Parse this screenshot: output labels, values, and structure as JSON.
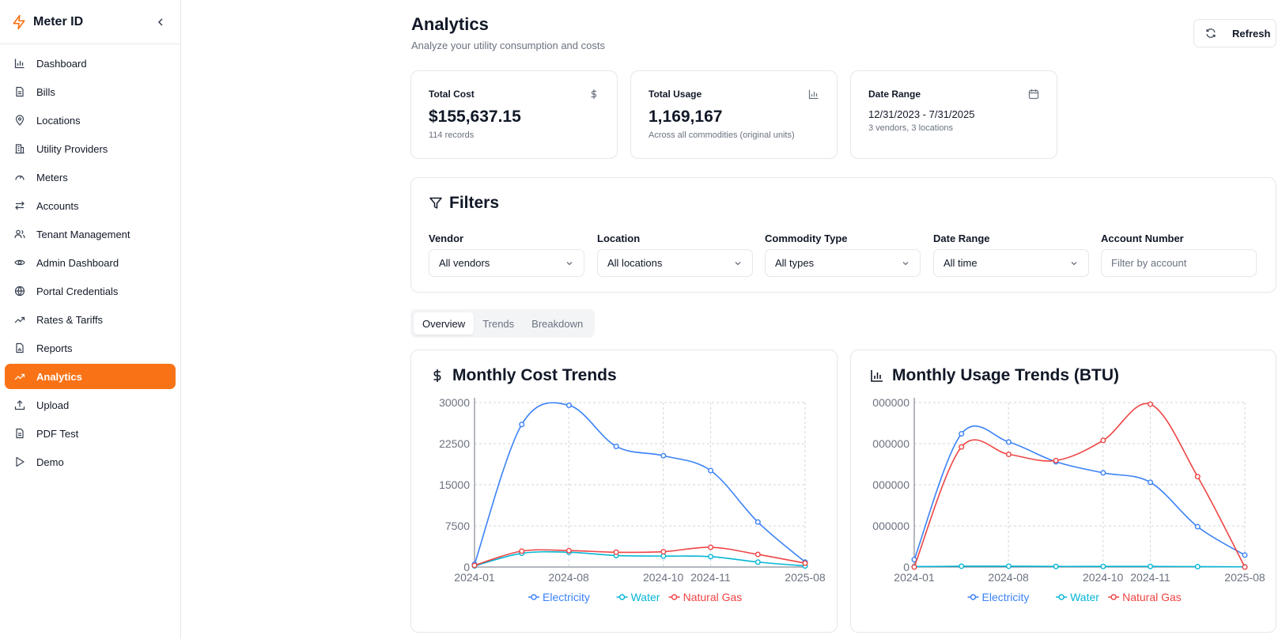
{
  "app": {
    "name": "Meter ID",
    "accent": "#f97316"
  },
  "sidebar": {
    "items": [
      {
        "label": "Dashboard",
        "icon": "bar-chart-icon"
      },
      {
        "label": "Bills",
        "icon": "file-icon"
      },
      {
        "label": "Locations",
        "icon": "map-pin-icon"
      },
      {
        "label": "Utility Providers",
        "icon": "building-icon"
      },
      {
        "label": "Meters",
        "icon": "gauge-icon"
      },
      {
        "label": "Accounts",
        "icon": "arrows-icon"
      },
      {
        "label": "Tenant Management",
        "icon": "users-icon"
      },
      {
        "label": "Admin Dashboard",
        "icon": "eye-icon"
      },
      {
        "label": "Portal Credentials",
        "icon": "globe-icon"
      },
      {
        "label": "Rates & Tariffs",
        "icon": "trending-up-icon"
      },
      {
        "label": "Reports",
        "icon": "file-chart-icon"
      },
      {
        "label": "Analytics",
        "icon": "trending-up-icon",
        "active": true
      },
      {
        "label": "Upload",
        "icon": "upload-icon"
      },
      {
        "label": "PDF Test",
        "icon": "file-icon"
      },
      {
        "label": "Demo",
        "icon": "play-icon"
      }
    ]
  },
  "header": {
    "title": "Analytics",
    "subtitle": "Analyze your utility consumption and costs",
    "refresh_label": "Refresh"
  },
  "stats": {
    "total_cost": {
      "label": "Total Cost",
      "value": "$155,637.15",
      "note": "114 records"
    },
    "total_usage": {
      "label": "Total Usage",
      "value": "1,169,167",
      "note": "Across all commodities (original units)"
    },
    "date_range": {
      "label": "Date Range",
      "value": "12/31/2023 - 7/31/2025",
      "note": "3 vendors, 3 locations"
    }
  },
  "filters": {
    "title": "Filters",
    "vendor": {
      "label": "Vendor",
      "value": "All vendors"
    },
    "location": {
      "label": "Location",
      "value": "All locations"
    },
    "commodity": {
      "label": "Commodity Type",
      "value": "All types"
    },
    "date_range": {
      "label": "Date Range",
      "value": "All time"
    },
    "account": {
      "label": "Account Number",
      "placeholder": "Filter by account"
    }
  },
  "tabs": [
    "Overview",
    "Trends",
    "Breakdown"
  ],
  "colors": {
    "electricity": "#3b82f6",
    "water": "#06b6d4",
    "natural_gas": "#ef4444"
  },
  "chart_data": [
    {
      "type": "line",
      "title": "Monthly Cost Trends",
      "x_ticks": [
        "2024-01",
        "2024-08",
        "2024-10",
        "2024-11",
        "2025-08"
      ],
      "y_ticks": [
        "0",
        "7500",
        "15000",
        "22500",
        "30000"
      ],
      "ylim": [
        0,
        30000
      ],
      "grid": true,
      "legend": "bottom",
      "series": [
        {
          "name": "Electricity",
          "values": [
            500,
            26000,
            29500,
            22000,
            20300,
            17600,
            8200,
            900
          ]
        },
        {
          "name": "Water",
          "values": [
            200,
            2500,
            2700,
            2100,
            2000,
            1900,
            900,
            200
          ]
        },
        {
          "name": "Natural Gas",
          "values": [
            300,
            2900,
            3000,
            2700,
            2800,
            3600,
            2300,
            700
          ]
        }
      ]
    },
    {
      "type": "line",
      "title": "Monthly Usage Trends (BTU)",
      "x_ticks": [
        "2024-01",
        "2024-08",
        "2024-10",
        "2024-11",
        "2025-08"
      ],
      "y_ticks": [
        "0",
        "000000",
        "000000",
        "000000",
        "000000"
      ],
      "ylim": [
        0,
        4000000
      ],
      "grid": true,
      "legend": "bottom",
      "series": [
        {
          "name": "Electricity",
          "values": [
            180000,
            3240000,
            3040000,
            2560000,
            2290000,
            2060000,
            980000,
            290000
          ]
        },
        {
          "name": "Water",
          "values": [
            10000,
            20000,
            20000,
            15000,
            15000,
            15000,
            10000,
            5000
          ]
        },
        {
          "name": "Natural Gas",
          "values": [
            0,
            2920000,
            2740000,
            2590000,
            3080000,
            3960000,
            2200000,
            0
          ]
        }
      ]
    }
  ]
}
